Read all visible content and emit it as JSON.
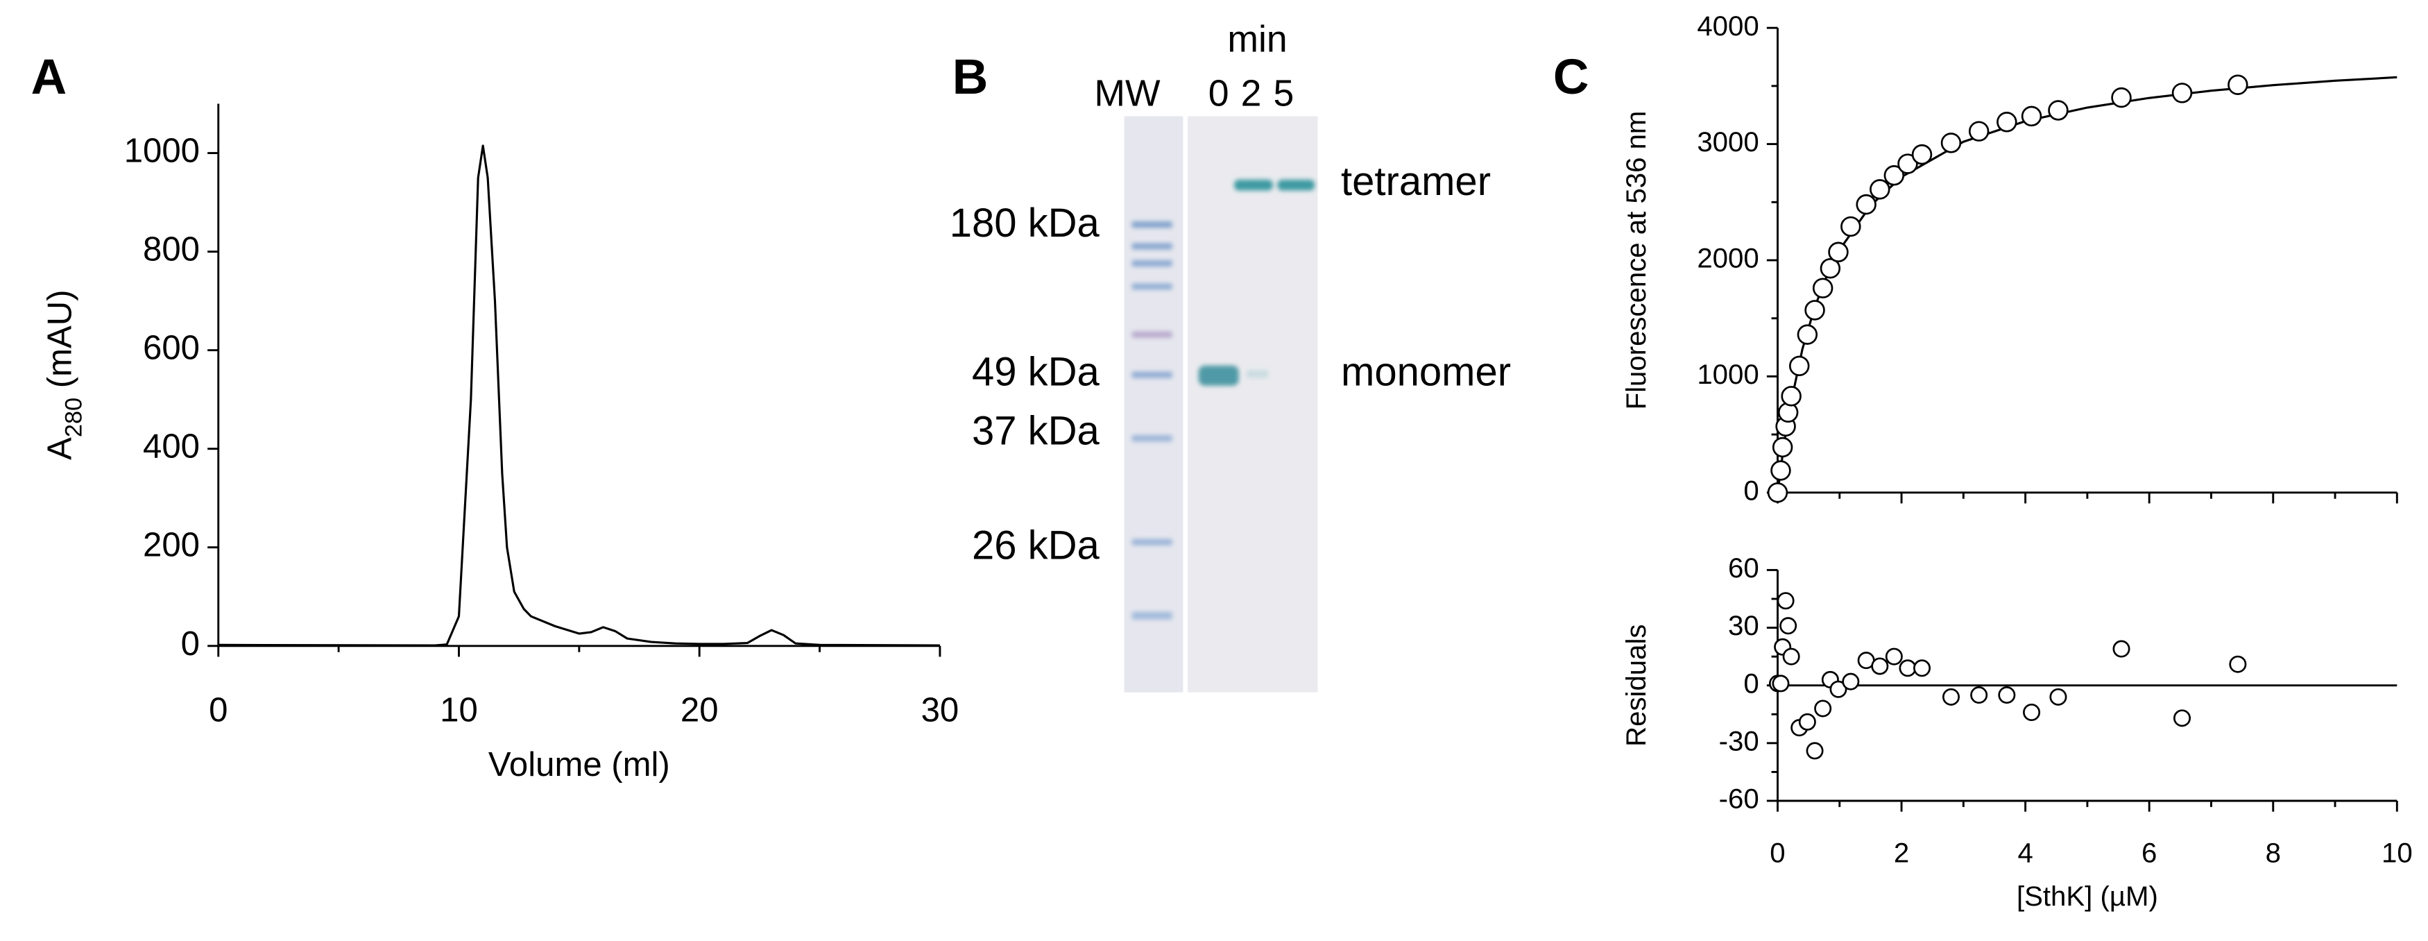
{
  "chart_data": [
    {
      "type": "line",
      "panel": "A",
      "xlabel": "Volume (ml)",
      "ylabel_parts": [
        "A",
        "280",
        " (mAU)"
      ],
      "x": [
        0,
        9,
        9.5,
        10,
        10.5,
        10.8,
        11,
        11.2,
        11.5,
        11.8,
        12,
        12.3,
        12.7,
        13,
        14,
        15,
        15.5,
        16,
        16.5,
        17,
        18,
        19,
        20,
        21,
        22,
        22.5,
        23,
        23.5,
        24,
        25,
        30
      ],
      "values": [
        2,
        1,
        3,
        60,
        500,
        950,
        1015,
        950,
        700,
        350,
        200,
        110,
        75,
        60,
        40,
        25,
        28,
        38,
        30,
        15,
        8,
        5,
        4,
        4,
        6,
        20,
        32,
        22,
        5,
        2,
        1
      ],
      "color": "#000000",
      "xlim": [
        0,
        30
      ],
      "xticks": [
        0,
        10,
        20,
        30
      ],
      "xminor": [
        5,
        15,
        25
      ],
      "ylim": [
        0,
        1100
      ],
      "yticks": [
        0,
        200,
        400,
        600,
        800,
        1000
      ]
    },
    {
      "type": "scatter",
      "panel": "C",
      "ylabel": "Fluorescence at 536 nm",
      "x": [
        0,
        0.05,
        0.08,
        0.13,
        0.17,
        0.22,
        0.35,
        0.48,
        0.6,
        0.73,
        0.85,
        0.98,
        1.18,
        1.43,
        1.65,
        1.88,
        2.1,
        2.33,
        2.8,
        3.25,
        3.7,
        4.1,
        4.53,
        5.55,
        6.53,
        7.43
      ],
      "values": [
        0,
        190,
        390,
        570,
        690,
        830,
        1090,
        1360,
        1570,
        1760,
        1930,
        2070,
        2290,
        2480,
        2610,
        2730,
        2830,
        2910,
        3010,
        3110,
        3190,
        3240,
        3290,
        3400,
        3440,
        3510
      ],
      "fit": {
        "x": [
          0,
          0.1,
          0.2,
          0.4,
          0.6,
          0.8,
          1,
          1.5,
          2,
          3,
          4,
          5,
          6,
          7,
          8,
          9,
          10
        ],
        "values": [
          0,
          405,
          734,
          1235,
          1598,
          1873,
          2090,
          2470,
          2717,
          3020,
          3197,
          3314,
          3397,
          3459,
          3507,
          3545,
          3575
        ]
      },
      "xlim": [
        0,
        10
      ],
      "ylim": [
        0,
        4000
      ],
      "yticks": [
        0,
        1000,
        2000,
        3000,
        4000
      ],
      "yminor": [
        500,
        1500,
        2500,
        3500
      ]
    },
    {
      "type": "scatter",
      "xlabel": "[SthK] (µM)",
      "ylabel": "Residuals",
      "x": [
        0,
        0.05,
        0.08,
        0.13,
        0.17,
        0.22,
        0.35,
        0.48,
        0.6,
        0.73,
        0.85,
        0.98,
        1.18,
        1.43,
        1.65,
        1.88,
        2.1,
        2.33,
        2.8,
        3.25,
        3.7,
        4.1,
        4.53,
        5.55,
        6.53,
        7.43
      ],
      "values": [
        1,
        1,
        20,
        44,
        31,
        15,
        -22,
        -19,
        -34,
        -12,
        3,
        -2,
        2,
        13,
        10,
        15,
        9,
        9,
        -6,
        -5,
        -5,
        -14,
        -6,
        19,
        -17,
        11
      ],
      "hline": 0,
      "xlim": [
        0,
        10
      ],
      "xticks": [
        0,
        2,
        4,
        6,
        8,
        10
      ],
      "xminor": [
        1,
        3,
        5,
        7,
        9
      ],
      "ylim": [
        -60,
        60
      ],
      "yticks": [
        -60,
        -30,
        0,
        30,
        60
      ],
      "yminor": [
        -45,
        -15,
        15,
        45
      ]
    }
  ],
  "gel": {
    "panel": "B",
    "time_label": "min",
    "lanes": [
      "MW",
      "0",
      "2",
      "5"
    ],
    "markers": [
      "180 kDa",
      "49 kDa",
      "37 kDa",
      "26 kDa"
    ],
    "bands": [
      "tetramer",
      "monomer"
    ]
  }
}
